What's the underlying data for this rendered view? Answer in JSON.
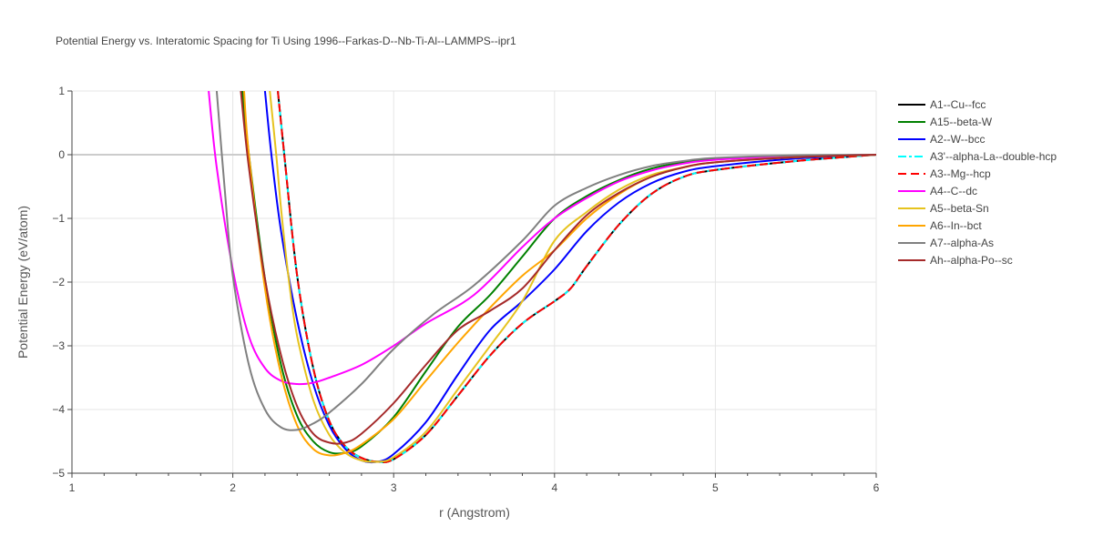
{
  "chart_data": {
    "type": "line",
    "title": "Potential Energy vs. Interatomic Spacing for Ti Using 1996--Farkas-D--Nb-Ti-Al--LAMMPS--ipr1",
    "xlabel": "r (Angstrom)",
    "ylabel": "Potential Energy (eV/atom)",
    "xlim": [
      1,
      6
    ],
    "ylim": [
      -5,
      1
    ],
    "xticks": [
      "1",
      "2",
      "3",
      "4",
      "5",
      "6"
    ],
    "yticks": [
      "1",
      "0",
      "−1",
      "−2",
      "−3",
      "−4",
      "−5"
    ],
    "grid": true,
    "legend_position": "right",
    "series": [
      {
        "name": "A1--Cu--fcc",
        "color": "#000000",
        "dash": "solid",
        "x": [
          2.28,
          2.32,
          2.4,
          2.5,
          2.6,
          2.7,
          2.8,
          2.9,
          3.0,
          3.2,
          3.4,
          3.6,
          3.8,
          4.0,
          4.1,
          4.2,
          4.4,
          4.6,
          4.8,
          5.0,
          5.5,
          6.0
        ],
        "y": [
          1.0,
          0.0,
          -1.9,
          -3.35,
          -4.18,
          -4.58,
          -4.76,
          -4.82,
          -4.78,
          -4.4,
          -3.78,
          -3.15,
          -2.65,
          -2.3,
          -2.1,
          -1.75,
          -1.1,
          -0.62,
          -0.35,
          -0.24,
          -0.1,
          0.0
        ]
      },
      {
        "name": "A15--beta-W",
        "color": "#008000",
        "dash": "solid",
        "x": [
          2.06,
          2.1,
          2.2,
          2.3,
          2.4,
          2.5,
          2.6,
          2.7,
          2.8,
          3.0,
          3.2,
          3.4,
          3.6,
          3.8,
          4.0,
          4.2,
          4.4,
          4.6,
          4.8,
          5.0,
          5.5,
          6.0
        ],
        "y": [
          1.0,
          0.0,
          -1.95,
          -3.3,
          -4.1,
          -4.5,
          -4.67,
          -4.68,
          -4.58,
          -4.12,
          -3.4,
          -2.7,
          -2.2,
          -1.6,
          -1.0,
          -0.65,
          -0.4,
          -0.22,
          -0.12,
          -0.07,
          -0.02,
          0.0
        ]
      },
      {
        "name": "A2--W--bcc",
        "color": "#0000ff",
        "dash": "solid",
        "x": [
          2.2,
          2.24,
          2.3,
          2.4,
          2.5,
          2.6,
          2.7,
          2.8,
          2.9,
          3.0,
          3.2,
          3.4,
          3.6,
          3.8,
          4.0,
          4.2,
          4.4,
          4.6,
          4.8,
          5.0,
          5.5,
          6.0
        ],
        "y": [
          1.0,
          0.0,
          -1.2,
          -2.6,
          -3.6,
          -4.25,
          -4.62,
          -4.8,
          -4.82,
          -4.7,
          -4.2,
          -3.45,
          -2.75,
          -2.3,
          -1.8,
          -1.2,
          -0.75,
          -0.45,
          -0.27,
          -0.18,
          -0.06,
          0.0
        ]
      },
      {
        "name": "A3'--alpha-La--double-hcp",
        "color": "#00ffff",
        "dash": "dashdot",
        "x": [
          2.28,
          2.32,
          2.4,
          2.5,
          2.6,
          2.7,
          2.8,
          2.9,
          3.0,
          3.2,
          3.4,
          3.6,
          3.8,
          4.0,
          4.1,
          4.2,
          4.4,
          4.6,
          4.8,
          5.0,
          5.5,
          6.0
        ],
        "y": [
          1.0,
          0.0,
          -1.9,
          -3.35,
          -4.18,
          -4.58,
          -4.76,
          -4.82,
          -4.78,
          -4.4,
          -3.78,
          -3.15,
          -2.65,
          -2.3,
          -2.1,
          -1.75,
          -1.1,
          -0.62,
          -0.35,
          -0.24,
          -0.1,
          0.0
        ]
      },
      {
        "name": "A3--Mg--hcp",
        "color": "#ff0000",
        "dash": "dash",
        "x": [
          2.28,
          2.32,
          2.4,
          2.5,
          2.6,
          2.7,
          2.8,
          2.9,
          3.0,
          3.2,
          3.4,
          3.6,
          3.8,
          4.0,
          4.1,
          4.2,
          4.4,
          4.6,
          4.8,
          5.0,
          5.5,
          6.0
        ],
        "y": [
          1.0,
          0.0,
          -1.9,
          -3.35,
          -4.18,
          -4.58,
          -4.76,
          -4.82,
          -4.78,
          -4.4,
          -3.78,
          -3.15,
          -2.65,
          -2.3,
          -2.1,
          -1.75,
          -1.1,
          -0.62,
          -0.35,
          -0.24,
          -0.1,
          0.0
        ]
      },
      {
        "name": "A4--C--dc",
        "color": "#ff00ff",
        "dash": "solid",
        "x": [
          1.85,
          1.9,
          2.0,
          2.1,
          2.2,
          2.3,
          2.4,
          2.5,
          2.6,
          2.8,
          3.0,
          3.2,
          3.5,
          3.8,
          4.0,
          4.2,
          4.4,
          4.6,
          4.8,
          5.0,
          5.5,
          6.0
        ],
        "y": [
          1.0,
          -0.2,
          -1.8,
          -2.85,
          -3.35,
          -3.55,
          -3.6,
          -3.58,
          -3.5,
          -3.3,
          -3.0,
          -2.65,
          -2.2,
          -1.45,
          -1.0,
          -0.68,
          -0.42,
          -0.25,
          -0.14,
          -0.08,
          -0.02,
          0.0
        ]
      },
      {
        "name": "A5--beta-Sn",
        "color": "#e6c31e",
        "dash": "solid",
        "x": [
          2.23,
          2.27,
          2.3,
          2.35,
          2.4,
          2.5,
          2.6,
          2.7,
          2.8,
          2.9,
          3.0,
          3.2,
          3.4,
          3.6,
          3.8,
          4.0,
          4.2,
          4.4,
          4.6,
          4.8,
          5.0,
          5.5,
          6.0
        ],
        "y": [
          1.0,
          0.0,
          -0.85,
          -2.0,
          -2.85,
          -3.85,
          -4.4,
          -4.68,
          -4.8,
          -4.82,
          -4.75,
          -4.35,
          -3.68,
          -3.0,
          -2.3,
          -1.35,
          -0.9,
          -0.55,
          -0.32,
          -0.2,
          -0.12,
          -0.04,
          0.0
        ]
      },
      {
        "name": "A6--In--bct",
        "color": "#ffa500",
        "dash": "solid",
        "x": [
          2.07,
          2.1,
          2.2,
          2.3,
          2.4,
          2.5,
          2.6,
          2.7,
          2.8,
          3.0,
          3.2,
          3.4,
          3.6,
          3.8,
          4.0,
          4.2,
          4.4,
          4.6,
          4.8,
          5.0,
          5.5,
          6.0
        ],
        "y": [
          1.0,
          0.0,
          -2.1,
          -3.45,
          -4.25,
          -4.62,
          -4.72,
          -4.68,
          -4.55,
          -4.15,
          -3.55,
          -2.95,
          -2.4,
          -1.9,
          -1.5,
          -1.0,
          -0.62,
          -0.35,
          -0.2,
          -0.12,
          -0.04,
          0.0
        ]
      },
      {
        "name": "A7--alpha-As",
        "color": "#808080",
        "dash": "solid",
        "x": [
          1.9,
          1.95,
          2.0,
          2.1,
          2.2,
          2.3,
          2.4,
          2.5,
          2.6,
          2.8,
          3.0,
          3.25,
          3.5,
          3.8,
          4.0,
          4.2,
          4.4,
          4.6,
          4.8,
          5.0,
          5.5,
          6.0
        ],
        "y": [
          1.0,
          -0.55,
          -1.9,
          -3.3,
          -4.0,
          -4.28,
          -4.32,
          -4.22,
          -4.05,
          -3.6,
          -3.05,
          -2.5,
          -2.05,
          -1.35,
          -0.8,
          -0.52,
          -0.32,
          -0.18,
          -0.1,
          -0.05,
          -0.01,
          0.0
        ]
      },
      {
        "name": "Ah--alpha-Po--sc",
        "color": "#a52a2a",
        "dash": "solid",
        "x": [
          2.05,
          2.1,
          2.2,
          2.3,
          2.4,
          2.5,
          2.6,
          2.7,
          2.8,
          3.0,
          3.2,
          3.4,
          3.6,
          3.8,
          4.0,
          4.2,
          4.4,
          4.6,
          4.8,
          5.0,
          5.5,
          6.0
        ],
        "y": [
          1.0,
          -0.2,
          -1.95,
          -3.15,
          -3.95,
          -4.38,
          -4.52,
          -4.52,
          -4.38,
          -3.9,
          -3.3,
          -2.75,
          -2.45,
          -2.1,
          -1.5,
          -0.95,
          -0.6,
          -0.35,
          -0.2,
          -0.12,
          -0.04,
          0.0
        ]
      }
    ]
  }
}
